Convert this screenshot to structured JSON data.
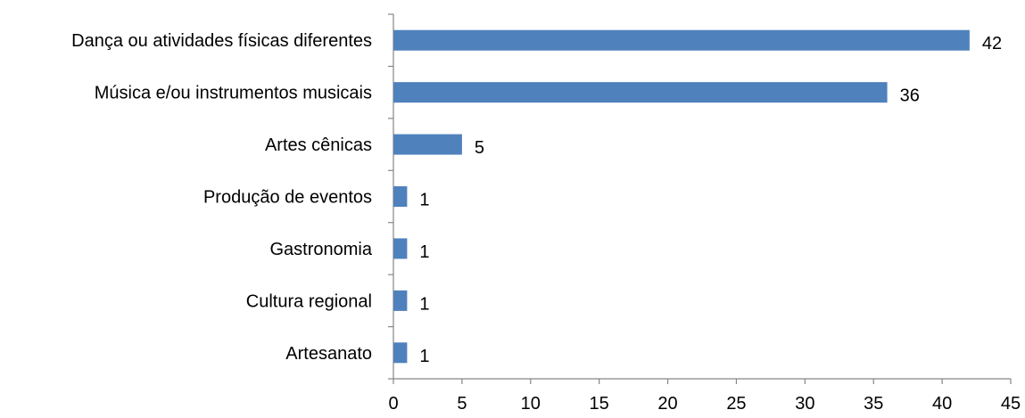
{
  "chart_data": {
    "type": "bar",
    "orientation": "horizontal",
    "categories": [
      "Dança ou atividades físicas diferentes",
      "Música e/ou instrumentos musicais",
      "Artes cênicas",
      "Produção de eventos",
      "Gastronomia",
      "Cultura regional",
      "Artesanato"
    ],
    "values": [
      42,
      36,
      5,
      1,
      1,
      1,
      1
    ],
    "data_labels": [
      "42",
      "36",
      "5",
      "1",
      "1",
      "1",
      "1"
    ],
    "xlim": [
      0,
      45
    ],
    "xticks": [
      0,
      5,
      10,
      15,
      20,
      25,
      30,
      35,
      40,
      45
    ],
    "xtick_labels": [
      "0",
      "5",
      "10",
      "15",
      "20",
      "25",
      "30",
      "35",
      "40",
      "45"
    ],
    "title": "",
    "xlabel": "",
    "ylabel": "",
    "grid": false,
    "legend": "none",
    "bar_color": "#4F81BD"
  }
}
